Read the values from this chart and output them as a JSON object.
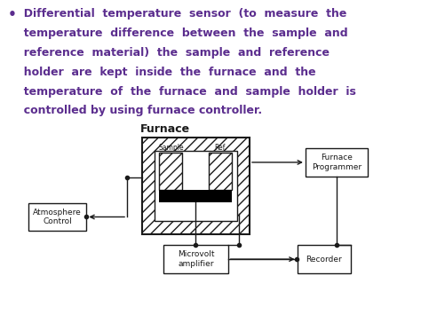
{
  "bg_color": "#ffffff",
  "text_color": "#5b2d8e",
  "diagram_color": "#1a1a1a",
  "bullet_lines": [
    "  Differential  temperature  sensor  (to  measure  the",
    "  temperature  difference  between  the  sample  and",
    "  reference  material)  the  sample  and  reference",
    "  holder  are  kept  inside  the  furnace  and  the",
    "  temperature  of  the  furnace  and  sample  holder  is",
    "  controlled by using furnace controller."
  ],
  "furnace_label": "Furnace",
  "sample_label": "Sample",
  "ref_label": "Ref.",
  "box_labels": [
    "Furnace\nProgrammer",
    "Atmosphere\nControl",
    "Microvolt\namplifier",
    "Recorder"
  ],
  "figsize": [
    4.74,
    3.55
  ],
  "dpi": 100
}
